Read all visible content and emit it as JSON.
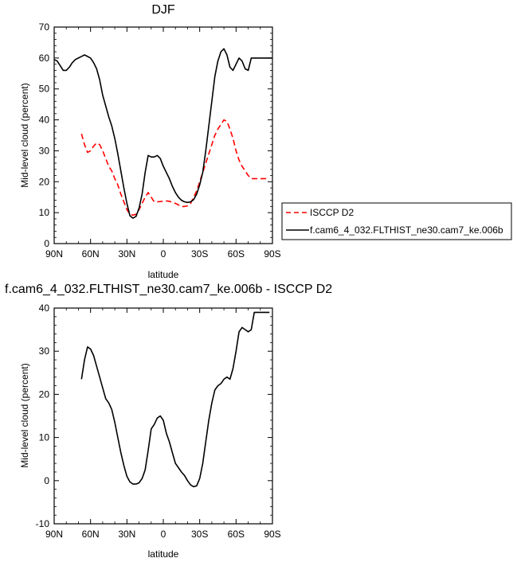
{
  "chart_data": [
    {
      "type": "line",
      "title": "DJF",
      "xlabel": "latitude",
      "ylabel": "Mid-level cloud (percent)",
      "xlim": [
        -90,
        90
      ],
      "ylim": [
        0,
        70
      ],
      "x_ticks": [
        "90N",
        "60N",
        "30N",
        "0",
        "30S",
        "60S",
        "90S"
      ],
      "y_ticks": [
        "0",
        "10",
        "20",
        "30",
        "40",
        "50",
        "60",
        "70"
      ],
      "legend": "outside-right",
      "series": [
        {
          "name": "ISCCP D2",
          "color": "#ff0000",
          "dash": "dashed",
          "x": [
            -67.5,
            -65,
            -62.5,
            -60,
            -57.5,
            -55,
            -52.5,
            -50,
            -47.5,
            -45,
            -42.5,
            -40,
            -37.5,
            -35,
            -32.5,
            -30,
            -27.5,
            -25,
            -22.5,
            -20,
            -17.5,
            -15,
            -12.5,
            -10,
            -7.5,
            -5,
            -2.5,
            0,
            2.5,
            5,
            7.5,
            10,
            12.5,
            15,
            17.5,
            20,
            22.5,
            25,
            27.5,
            30,
            32.5,
            35,
            37.5,
            40,
            42.5,
            45,
            47.5,
            50,
            52.5,
            55,
            57.5,
            60,
            62.5,
            65,
            67.5,
            70,
            72.5,
            75,
            77.5,
            80,
            82.5,
            85,
            87.5
          ],
          "values": [
            35.5,
            32,
            29.5,
            30,
            31.5,
            32.5,
            32,
            30,
            27.5,
            25,
            23.5,
            21,
            19,
            16,
            13.5,
            11,
            9.5,
            9.2,
            9.5,
            11,
            13,
            15,
            16.5,
            15,
            13.5,
            13.5,
            13.6,
            13.7,
            13.8,
            13.7,
            13.3,
            13,
            12.5,
            12,
            12,
            12.2,
            13,
            15,
            17,
            20,
            23,
            26,
            29,
            32,
            35,
            37,
            38.5,
            40,
            39.5,
            37,
            34,
            30,
            27,
            25,
            23.5,
            22,
            21,
            21,
            21,
            21,
            21,
            21,
            21
          ]
        },
        {
          "name": "f.cam6_4_032.FLTHIST_ne30.cam7_ke.006b",
          "color": "#000000",
          "dash": "solid",
          "x": [
            -90,
            -87.5,
            -85,
            -82.5,
            -80,
            -77.5,
            -75,
            -72.5,
            -70,
            -67.5,
            -65,
            -62.5,
            -60,
            -57.5,
            -55,
            -52.5,
            -50,
            -47.5,
            -45,
            -42.5,
            -40,
            -37.5,
            -35,
            -32.5,
            -30,
            -27.5,
            -25,
            -22.5,
            -20,
            -17.5,
            -15,
            -12.5,
            -10,
            -7.5,
            -5,
            -2.5,
            0,
            2.5,
            5,
            7.5,
            10,
            12.5,
            15,
            17.5,
            20,
            22.5,
            25,
            27.5,
            30,
            32.5,
            35,
            37.5,
            40,
            42.5,
            45,
            47.5,
            50,
            52.5,
            55,
            57.5,
            60,
            62.5,
            65,
            67.5,
            70,
            72.5,
            75,
            77.5,
            80,
            82.5,
            85,
            87.5,
            90
          ],
          "values": [
            59.5,
            59,
            57.5,
            56,
            56,
            57,
            58.5,
            59.5,
            60,
            60.5,
            61,
            60.5,
            60,
            58.5,
            56.5,
            53,
            48,
            44.5,
            41,
            38,
            34,
            29,
            23.5,
            18,
            13,
            9,
            8.2,
            8.8,
            11.5,
            16,
            23,
            28.5,
            28,
            28,
            28.5,
            27.5,
            25,
            23,
            21,
            18.5,
            16.5,
            15,
            14,
            13.5,
            13.3,
            13.5,
            14.2,
            16,
            19,
            23,
            30,
            38,
            46,
            54,
            59,
            62,
            63,
            61,
            57,
            56,
            58,
            60,
            59,
            56.5,
            56,
            60,
            60,
            60,
            60,
            60,
            60,
            60,
            60
          ]
        }
      ]
    },
    {
      "type": "line",
      "title": "f.cam6_4_032.FLTHIST_ne30.cam7_ke.006b - ISCCP D2",
      "xlabel": "latitude",
      "ylabel": "Mid-level cloud (percent)",
      "xlim": [
        -90,
        90
      ],
      "ylim": [
        -10,
        40
      ],
      "x_ticks": [
        "90N",
        "60N",
        "30N",
        "0",
        "30S",
        "60S",
        "90S"
      ],
      "y_ticks": [
        "-10",
        "0",
        "10",
        "20",
        "30",
        "40"
      ],
      "series": [
        {
          "color": "#000000",
          "dash": "solid",
          "x": [
            -67.5,
            -65,
            -62.5,
            -60,
            -57.5,
            -55,
            -52.5,
            -50,
            -47.5,
            -45,
            -42.5,
            -40,
            -37.5,
            -35,
            -32.5,
            -30,
            -27.5,
            -25,
            -22.5,
            -20,
            -17.5,
            -15,
            -12.5,
            -10,
            -7.5,
            -5,
            -2.5,
            0,
            2.5,
            5,
            7.5,
            10,
            12.5,
            15,
            17.5,
            20,
            22.5,
            25,
            27.5,
            30,
            32.5,
            35,
            37.5,
            40,
            42.5,
            45,
            47.5,
            50,
            52.5,
            55,
            57.5,
            60,
            62.5,
            65,
            67.5,
            70,
            72.5,
            75,
            77.5,
            80,
            82.5,
            85,
            87.5
          ],
          "values": [
            23.5,
            28,
            31,
            30.5,
            29,
            26.5,
            24,
            21.5,
            19,
            18,
            16.5,
            13.5,
            10,
            6.5,
            3.5,
            1,
            -0.3,
            -0.8,
            -0.8,
            -0.5,
            0.5,
            2.5,
            7,
            12,
            13,
            14.5,
            15,
            14,
            11,
            9,
            6.5,
            4,
            3,
            2,
            1.2,
            0,
            -1,
            -1.4,
            -1.2,
            0.5,
            4,
            9,
            14,
            18,
            21,
            22,
            22.5,
            23.5,
            24,
            23.5,
            26,
            30,
            34.5,
            35.5,
            35,
            34.5,
            35,
            39,
            39,
            39,
            39,
            39,
            39
          ]
        }
      ]
    }
  ]
}
